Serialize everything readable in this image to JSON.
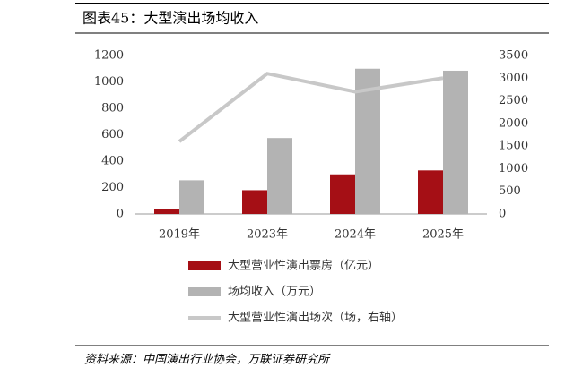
{
  "chart_data": {
    "type": "bar",
    "title": "图表45：大型演出场均收入",
    "source": "资料来源：中国演出行业协会，万联证券研究所",
    "categories": [
      "2019年",
      "2023年",
      "2024年",
      "2025年"
    ],
    "series": [
      {
        "name": "大型营业性演出票房（亿元）",
        "color": "#a50f15",
        "values": [
          40,
          180,
          300,
          330
        ]
      },
      {
        "name": "场均收入（万元）",
        "color": "#b3b3b3",
        "values": [
          255,
          575,
          1100,
          1085
        ]
      },
      {
        "name": "大型营业性演出场次（场，右轴）",
        "color": "#c8c8c8",
        "type": "line",
        "axis": "y2",
        "values": [
          1600,
          3100,
          2700,
          3000
        ]
      }
    ],
    "ylim": [
      0,
      1200
    ],
    "yticks": [
      0,
      200,
      400,
      600,
      800,
      1000,
      1200
    ],
    "y2lim": [
      0,
      3500
    ],
    "y2ticks": [
      0,
      500,
      1000,
      1500,
      2000,
      2500,
      3000,
      3500
    ],
    "grid": false
  }
}
